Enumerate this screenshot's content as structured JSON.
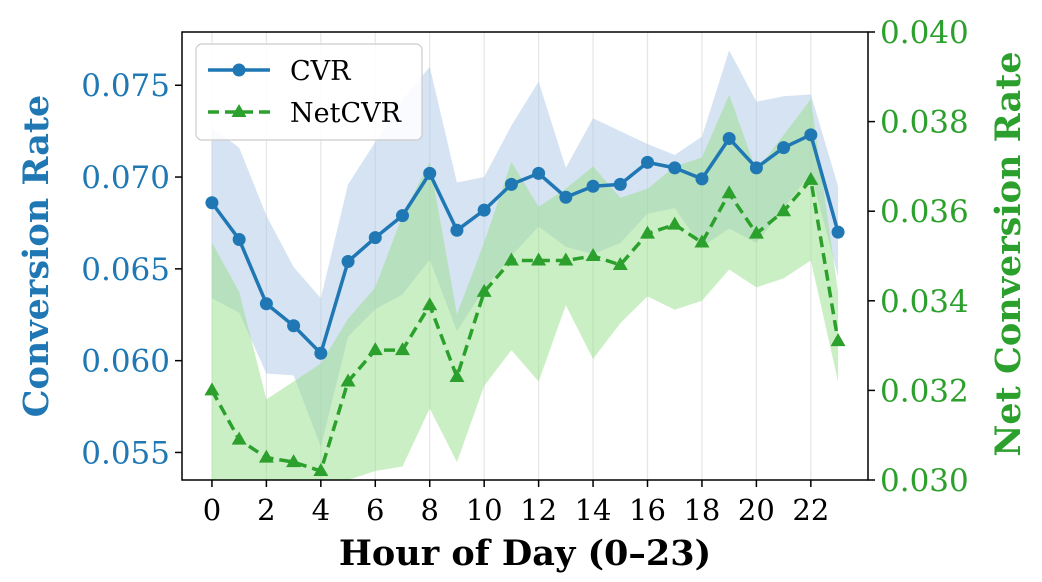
{
  "chart_data": {
    "type": "line",
    "xlabel": "Hour of Day (0–23)",
    "ylabel": "Conversion Rate",
    "y2label": "Net Conversion Rate",
    "x": [
      0,
      1,
      2,
      3,
      4,
      5,
      6,
      7,
      8,
      9,
      10,
      11,
      12,
      13,
      14,
      15,
      16,
      17,
      18,
      19,
      20,
      21,
      22,
      23
    ],
    "xticks": [
      0,
      2,
      4,
      6,
      8,
      10,
      12,
      14,
      16,
      18,
      20,
      22
    ],
    "xlim": [
      -1.1,
      24.1
    ],
    "ylim": [
      0.0535,
      0.0779
    ],
    "y2lim": [
      0.03,
      0.04
    ],
    "yticks": [
      0.055,
      0.06,
      0.065,
      0.07,
      0.075
    ],
    "ytick_labels": [
      "0.055",
      "0.060",
      "0.065",
      "0.070",
      "0.075"
    ],
    "y2ticks": [
      0.03,
      0.032,
      0.034,
      0.036,
      0.038,
      0.04
    ],
    "y2tick_labels": [
      "0.030",
      "0.032",
      "0.034",
      "0.036",
      "0.038",
      "0.040"
    ],
    "grid": "vertical",
    "legend_position": "top-left",
    "colors": {
      "cvr": "#1f77b4",
      "netcvr": "#2ca02c",
      "cvr_band": "#aec7e8",
      "netcvr_band": "#98df8a"
    },
    "series": [
      {
        "name": "CVR",
        "axis": "left",
        "style": "solid-circle",
        "values": [
          0.0686,
          0.0666,
          0.0631,
          0.0619,
          0.0604,
          0.0654,
          0.0667,
          0.0679,
          0.0702,
          0.0671,
          0.0682,
          0.0696,
          0.0702,
          0.0689,
          0.0695,
          0.0696,
          0.0708,
          0.0705,
          0.0699,
          0.0721,
          0.0705,
          0.0716,
          0.0723,
          0.067
        ],
        "upper": [
          0.0727,
          0.0716,
          0.0679,
          0.0651,
          0.0634,
          0.0696,
          0.0719,
          0.0742,
          0.076,
          0.0697,
          0.07,
          0.0728,
          0.0752,
          0.0705,
          0.0732,
          0.0725,
          0.0718,
          0.0712,
          0.0722,
          0.0769,
          0.0741,
          0.0744,
          0.0745,
          0.0695
        ],
        "lower": [
          0.0634,
          0.0626,
          0.0593,
          0.0592,
          0.0553,
          0.0613,
          0.0628,
          0.0636,
          0.0655,
          0.0616,
          0.0639,
          0.0657,
          0.0673,
          0.0662,
          0.0658,
          0.0664,
          0.068,
          0.0683,
          0.0662,
          0.0672,
          0.0664,
          0.0683,
          0.0702,
          0.0646
        ]
      },
      {
        "name": "NetCVR",
        "axis": "right",
        "style": "dashed-triangle",
        "values": [
          0.032,
          0.0309,
          0.0305,
          0.0304,
          0.0302,
          0.0322,
          0.0329,
          0.0329,
          0.0339,
          0.0323,
          0.0342,
          0.0349,
          0.0349,
          0.0349,
          0.035,
          0.0348,
          0.0355,
          0.0357,
          0.0353,
          0.0364,
          0.0355,
          0.036,
          0.0367,
          0.0331
        ],
        "upper": [
          0.0353,
          0.0342,
          0.0318,
          0.0322,
          0.0326,
          0.0336,
          0.0343,
          0.0359,
          0.0371,
          0.0337,
          0.0353,
          0.0371,
          0.0361,
          0.0365,
          0.037,
          0.0363,
          0.0365,
          0.037,
          0.0372,
          0.0386,
          0.0369,
          0.0377,
          0.0385,
          0.0342
        ],
        "lower": [
          0.0298,
          0.0293,
          0.0297,
          0.029,
          0.0293,
          0.03,
          0.0302,
          0.0303,
          0.0316,
          0.0304,
          0.0321,
          0.0329,
          0.0322,
          0.0339,
          0.0327,
          0.0335,
          0.0341,
          0.0338,
          0.034,
          0.0347,
          0.0343,
          0.0345,
          0.0349,
          0.0322
        ]
      }
    ]
  }
}
